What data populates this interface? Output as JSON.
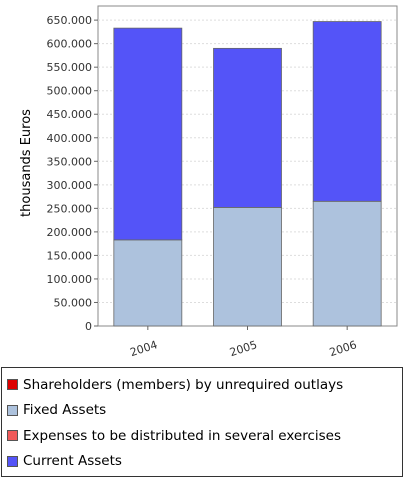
{
  "chart_data": {
    "type": "bar",
    "stacked": true,
    "categories": [
      "2004",
      "2005",
      "2006"
    ],
    "series": [
      {
        "name": "Shareholders (members) by unrequired outlays",
        "color": "#dd0000",
        "values": [
          0,
          0,
          0
        ]
      },
      {
        "name": "Fixed Assets",
        "color": "#adc2dd",
        "values": [
          183000,
          252000,
          265000
        ]
      },
      {
        "name": "Expenses to be distributed in several exercises",
        "color": "#f05a5a",
        "values": [
          0,
          0,
          0
        ]
      },
      {
        "name": "Current Assets",
        "color": "#5454f8",
        "values": [
          450000,
          338000,
          382000
        ]
      }
    ],
    "ylabel": "thousands Euros",
    "xlabel": "",
    "ylim": [
      0,
      680000
    ],
    "yticks": [
      0,
      50000,
      100000,
      150000,
      200000,
      250000,
      300000,
      350000,
      400000,
      450000,
      500000,
      550000,
      600000,
      650000
    ],
    "ytick_labels": [
      "0",
      "50.000",
      "100.000",
      "150.000",
      "200.000",
      "250.000",
      "300.000",
      "350.000",
      "400.000",
      "450.000",
      "500.000",
      "550.000",
      "600.000",
      "650.000"
    ],
    "grid": true,
    "legend_position": "bottom"
  }
}
